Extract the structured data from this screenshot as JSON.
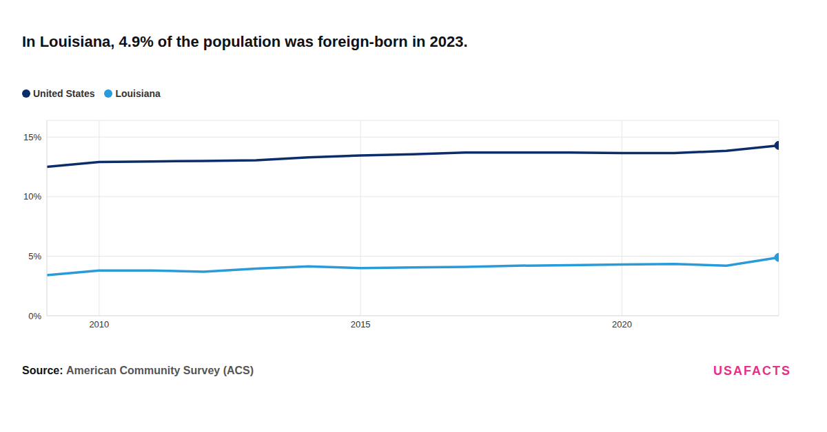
{
  "chart_data": {
    "type": "line",
    "title": "In Louisiana, 4.9% of the population was foreign-born in 2023.",
    "x": [
      2009,
      2010,
      2011,
      2012,
      2013,
      2014,
      2015,
      2016,
      2017,
      2018,
      2019,
      2020,
      2021,
      2022,
      2023
    ],
    "series": [
      {
        "name": "United States",
        "color": "#0b2e6b",
        "marker": "end",
        "values": [
          12.5,
          12.9,
          12.95,
          13.0,
          13.05,
          13.3,
          13.45,
          13.55,
          13.7,
          13.7,
          13.7,
          13.65,
          13.65,
          13.85,
          14.3
        ]
      },
      {
        "name": "Louisiana",
        "color": "#2a9ad8",
        "marker": "end",
        "values": [
          3.4,
          3.8,
          3.8,
          3.7,
          3.95,
          4.15,
          4.0,
          4.05,
          4.1,
          4.2,
          4.25,
          4.3,
          4.35,
          4.2,
          4.9
        ]
      }
    ],
    "xlim": [
      2009,
      2023
    ],
    "xticks": [
      2010,
      2015,
      2020
    ],
    "ylim": [
      0,
      16.4
    ],
    "yticks": [
      {
        "value": 0,
        "label": "0%"
      },
      {
        "value": 5,
        "label": "5%"
      },
      {
        "value": 10,
        "label": "10%"
      },
      {
        "value": 15,
        "label": "15%"
      }
    ],
    "grid": true,
    "legend": "top-left",
    "source_label": "Source:",
    "source": "American Community Survey (ACS)",
    "logo": "USAFACTS"
  }
}
